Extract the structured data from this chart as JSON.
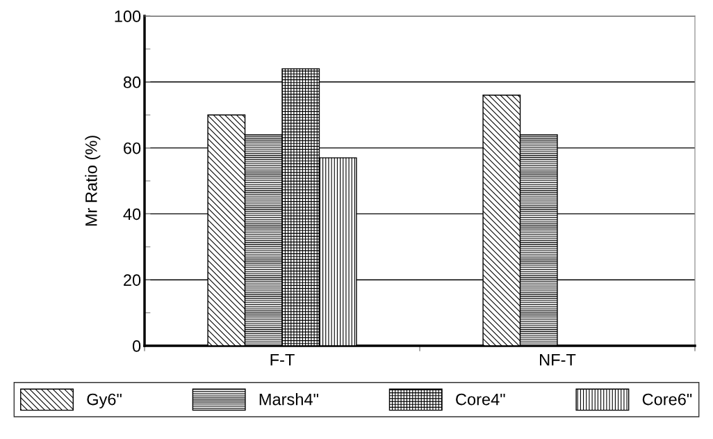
{
  "chart_data": {
    "type": "bar",
    "ylabel": "Mr Ratio (%)",
    "categories": [
      "F-T",
      "NF-T"
    ],
    "series": [
      {
        "name": "Gy6\"",
        "color": "#000000",
        "values": [
          70,
          76
        ]
      },
      {
        "name": "Marsh4\"",
        "color": "#000000",
        "values": [
          64,
          64
        ]
      },
      {
        "name": "Core4\"",
        "color": "#000000",
        "values": [
          84,
          null
        ]
      },
      {
        "name": "Core6\"",
        "color": "#000000",
        "values": [
          57,
          null
        ]
      }
    ],
    "ylim": [
      0,
      100
    ],
    "yticks": [
      0,
      {
        "value": 10,
        "label": null
      },
      20,
      {
        "value": 30,
        "label": null
      },
      40,
      {
        "value": 50,
        "label": null
      },
      60,
      {
        "value": 70,
        "label": null
      },
      80,
      {
        "value": 90,
        "label": null
      },
      100
    ],
    "grid": "y",
    "legend": "bottom"
  }
}
